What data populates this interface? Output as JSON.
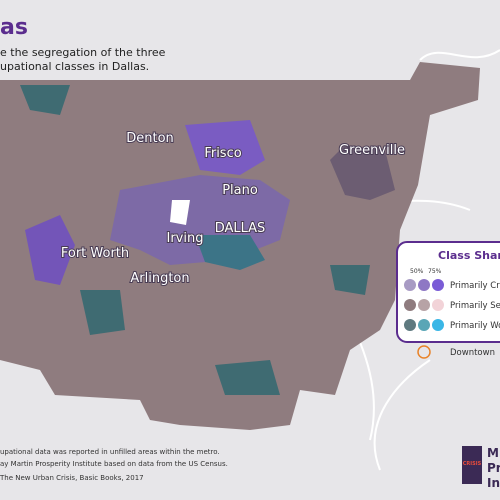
{
  "header": {
    "title": "as",
    "subtitle": [
      "e the segregation of the three",
      "upational classes in Dallas."
    ]
  },
  "cities": [
    "Denton",
    "Frisco",
    "Greenville",
    "Plano",
    "Irving",
    "DALLAS",
    "Fort Worth",
    "Arlington"
  ],
  "legend": {
    "title": "Class Shar",
    "scale": [
      "50%",
      "75%"
    ],
    "items": [
      "Primarily Cre",
      "Primarily Ser",
      "Primarily Wo",
      "Downtown"
    ]
  },
  "footer": {
    "notes": [
      "upational data was reported in unfilled areas within the metro.",
      "ay Martin Prosperity Institute based on data from the US Census."
    ],
    "source": "The New Urban Crisis, Basic Books, 2017"
  },
  "logo": {
    "badge": "CRISIS",
    "lines": [
      "M",
      "Pr",
      "In"
    ]
  }
}
